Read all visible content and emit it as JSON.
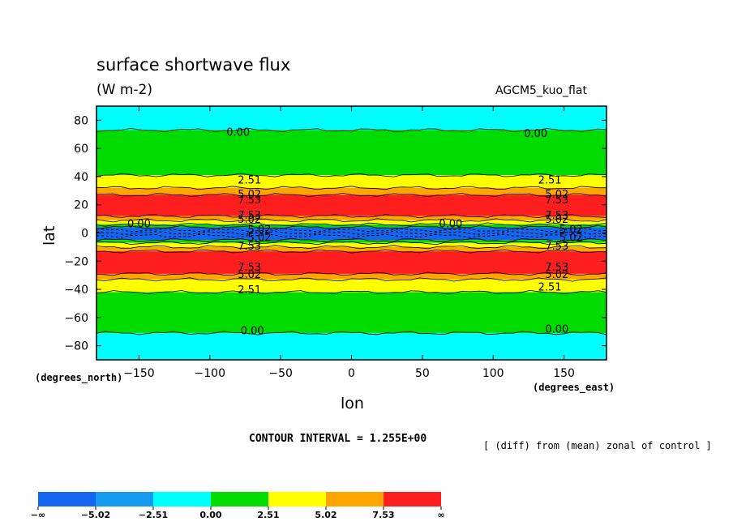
{
  "header": {
    "title": "surface shortwave flux",
    "units": "(W m-2)",
    "model": "AGCM5_kuo_flat"
  },
  "axes": {
    "xlabel": "lon",
    "ylabel": "lat",
    "x_unit": "(degrees_east)",
    "y_unit": "(degrees_north)"
  },
  "footer": {
    "contour_interval": "CONTOUR INTERVAL = 1.255E+00",
    "note": "[ (diff) from (mean) zonal of control ]"
  },
  "colors": {
    "lt_neg5_02": "#1466f0",
    "neg5_02_to_neg2_51": "#149bf0",
    "neg2_51_to_0": "#00ffff",
    "0_to_2_51": "#00dc00",
    "2_51_to_5_02": "#ffff00",
    "5_02_to_7_53": "#ffa500",
    "gt_7_53": "#ff1e1e"
  },
  "chart_data": {
    "type": "heatmap",
    "title": "surface shortwave flux",
    "subtitle": "(W m-2)",
    "xlabel": "lon",
    "ylabel": "lat",
    "xlim": [
      -180,
      180
    ],
    "ylim": [
      -90,
      90
    ],
    "x_ticks": [
      -150,
      -100,
      -50,
      0,
      50,
      100,
      150
    ],
    "x_tick_labels": [
      "−150",
      "−100",
      "−50",
      "0",
      "50",
      "100",
      "150"
    ],
    "y_ticks": [
      80,
      60,
      40,
      20,
      0,
      -20,
      -40,
      -60,
      -80
    ],
    "y_tick_labels": [
      "80",
      "60",
      "40",
      "20",
      "0",
      "−20",
      "−40",
      "−60",
      "−80"
    ],
    "contour_interval": 1.255,
    "levels": [
      -5.02,
      -2.51,
      0.0,
      2.51,
      5.02,
      7.53
    ],
    "colorbar": {
      "labels": [
        "−∞",
        "−5.02",
        "−2.51",
        "0.00",
        "2.51",
        "5.02",
        "7.53",
        "∞"
      ],
      "colors": [
        "#1466f0",
        "#149bf0",
        "#00ffff",
        "#00dc00",
        "#ffff00",
        "#ffa500",
        "#ff1e1e"
      ]
    },
    "bands": [
      {
        "lat_from": 90,
        "lat_to": 73,
        "level": "neg2_51_to_0"
      },
      {
        "lat_from": 73,
        "lat_to": 41,
        "level": "0_to_2_51"
      },
      {
        "lat_from": 41,
        "lat_to": 32,
        "level": "2_51_to_5_02"
      },
      {
        "lat_from": 32,
        "lat_to": 27,
        "level": "5_02_to_7_53"
      },
      {
        "lat_from": 27,
        "lat_to": 12,
        "level": "gt_7_53"
      },
      {
        "lat_from": 12,
        "lat_to": 9,
        "level": "5_02_to_7_53"
      },
      {
        "lat_from": 9,
        "lat_to": 6,
        "level": "2_51_to_5_02"
      },
      {
        "lat_from": 6,
        "lat_to": 4,
        "level": "0_to_2_51"
      },
      {
        "lat_from": 4,
        "lat_to": -5,
        "level": "lt_neg5_02"
      },
      {
        "lat_from": -5,
        "lat_to": -7,
        "level": "0_to_2_51"
      },
      {
        "lat_from": -7,
        "lat_to": -10,
        "level": "2_51_to_5_02"
      },
      {
        "lat_from": -10,
        "lat_to": -13,
        "level": "5_02_to_7_53"
      },
      {
        "lat_from": -13,
        "lat_to": -29,
        "level": "gt_7_53"
      },
      {
        "lat_from": -29,
        "lat_to": -33,
        "level": "5_02_to_7_53"
      },
      {
        "lat_from": -33,
        "lat_to": -42,
        "level": "2_51_to_5_02"
      },
      {
        "lat_from": -42,
        "lat_to": -71,
        "level": "0_to_2_51"
      },
      {
        "lat_from": -71,
        "lat_to": -90,
        "level": "neg2_51_to_0"
      }
    ],
    "contour_labels": [
      {
        "text": "0.00",
        "lon": -80,
        "lat": 72
      },
      {
        "text": "0.00",
        "lon": 130,
        "lat": 71
      },
      {
        "text": "2.51",
        "lon": -72,
        "lat": 38
      },
      {
        "text": "2.51",
        "lon": 140,
        "lat": 38
      },
      {
        "text": "5.02",
        "lon": -72,
        "lat": 28
      },
      {
        "text": "7.53",
        "lon": -72,
        "lat": 24
      },
      {
        "text": "5.02",
        "lon": 145,
        "lat": 28
      },
      {
        "text": "7.53",
        "lon": 145,
        "lat": 24
      },
      {
        "text": "7.53",
        "lon": -72,
        "lat": 13
      },
      {
        "text": "5.02",
        "lon": -72,
        "lat": 10
      },
      {
        "text": "7.53",
        "lon": 145,
        "lat": 13
      },
      {
        "text": "5.02",
        "lon": 145,
        "lat": 10
      },
      {
        "text": "0.00",
        "lon": -150,
        "lat": 7
      },
      {
        "text": "0.00",
        "lon": 70,
        "lat": 7
      },
      {
        "text": "5.02",
        "lon": -65,
        "lat": 3
      },
      {
        "text": "5.02",
        "lon": 155,
        "lat": 3
      },
      {
        "text": "5.02",
        "lon": -65,
        "lat": -3
      },
      {
        "text": "5.02",
        "lon": 155,
        "lat": -3
      },
      {
        "text": "7.53",
        "lon": -72,
        "lat": -9
      },
      {
        "text": "7.53",
        "lon": 145,
        "lat": -9
      },
      {
        "text": "7.53",
        "lon": -72,
        "lat": -24
      },
      {
        "text": "5.02",
        "lon": -72,
        "lat": -29
      },
      {
        "text": "7.53",
        "lon": 145,
        "lat": -24
      },
      {
        "text": "5.02",
        "lon": 145,
        "lat": -29
      },
      {
        "text": "2.51",
        "lon": -72,
        "lat": -40
      },
      {
        "text": "2.51",
        "lon": 140,
        "lat": -38
      },
      {
        "text": "0.00",
        "lon": -70,
        "lat": -69
      },
      {
        "text": "0.00",
        "lon": 145,
        "lat": -68
      }
    ]
  }
}
